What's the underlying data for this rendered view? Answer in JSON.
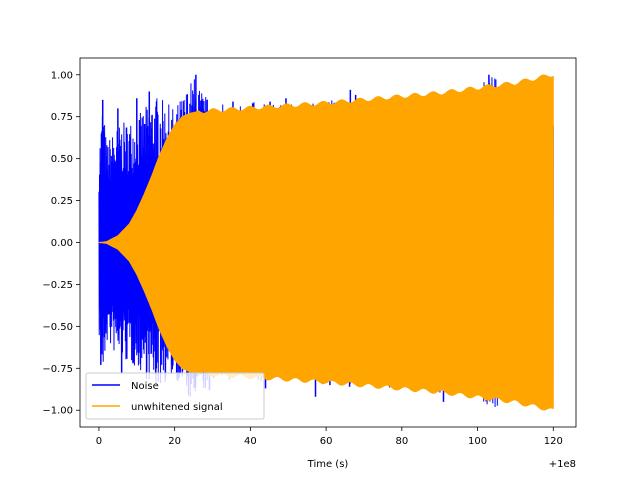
{
  "chart_data": {
    "type": "line",
    "title": "",
    "xlabel": "Time (s)",
    "ylabel": "",
    "x_offset_label": "+1e8",
    "xlim": [
      -5,
      126
    ],
    "ylim": [
      -1.1,
      1.1
    ],
    "x_ticks": [
      0,
      20,
      40,
      60,
      80,
      100,
      120
    ],
    "x_tick_labels": [
      "0",
      "20",
      "40",
      "60",
      "80",
      "100",
      "120"
    ],
    "y_ticks": [
      1.0,
      0.75,
      0.5,
      0.25,
      0.0,
      -0.25,
      -0.5,
      -0.75,
      -1.0
    ],
    "y_tick_labels": [
      "1.00",
      "0.75",
      "0.50",
      "0.25",
      "0.00",
      "−0.25",
      "−0.50",
      "−0.75",
      "−1.00"
    ],
    "legend_position": "lower-left",
    "grid": false,
    "series": [
      {
        "name": "Noise",
        "color": "#0000ff",
        "envelope_x": [
          0,
          1,
          2,
          5,
          10,
          15,
          20,
          25,
          30,
          40,
          50,
          60,
          70,
          80,
          90,
          100,
          103,
          110,
          120
        ],
        "envelope_y": [
          0.55,
          0.85,
          0.6,
          0.7,
          0.75,
          0.88,
          0.8,
          1.0,
          0.82,
          0.84,
          0.82,
          0.86,
          0.85,
          0.88,
          0.9,
          0.92,
          1.0,
          0.95,
          0.97
        ],
        "spikes": [
          {
            "x": 1.0,
            "y": 0.85
          },
          {
            "x": 5.0,
            "y": 0.8
          },
          {
            "x": 10.0,
            "y": 0.86
          },
          {
            "x": 13.3,
            "y": 0.9
          },
          {
            "x": 16.3,
            "y": 0.68
          },
          {
            "x": 25.6,
            "y": 1.0
          },
          {
            "x": 26.4,
            "y": 0.88
          },
          {
            "x": 35.4,
            "y": 0.84
          },
          {
            "x": 40.6,
            "y": 0.83
          },
          {
            "x": 45.2,
            "y": 0.84
          },
          {
            "x": 49.4,
            "y": 0.86
          },
          {
            "x": 66.4,
            "y": 0.91
          },
          {
            "x": 67.8,
            "y": 0.88
          },
          {
            "x": 103.0,
            "y": 1.0
          },
          {
            "x": 0.5,
            "y": -0.73
          },
          {
            "x": 6.0,
            "y": -0.78
          },
          {
            "x": 9.0,
            "y": -0.72
          },
          {
            "x": 29.2,
            "y": -0.88
          },
          {
            "x": 44.0,
            "y": -0.87
          },
          {
            "x": 57.2,
            "y": -0.92
          },
          {
            "x": 61.0,
            "y": -0.85
          },
          {
            "x": 66.2,
            "y": -0.86
          },
          {
            "x": 91.0,
            "y": -0.95
          },
          {
            "x": 102.0,
            "y": -0.92
          }
        ]
      },
      {
        "name": "unwhitened signal",
        "color": "#ffa500",
        "envelope_x": [
          0,
          2,
          5,
          8,
          10,
          12,
          14,
          16,
          18,
          20,
          22,
          24,
          26,
          30,
          40,
          50,
          60,
          70,
          80,
          90,
          100,
          110,
          120
        ],
        "envelope_y": [
          0.0,
          0.005,
          0.04,
          0.11,
          0.19,
          0.29,
          0.4,
          0.52,
          0.62,
          0.7,
          0.75,
          0.77,
          0.78,
          0.785,
          0.8,
          0.815,
          0.83,
          0.85,
          0.87,
          0.89,
          0.92,
          0.95,
          1.0
        ]
      }
    ]
  }
}
